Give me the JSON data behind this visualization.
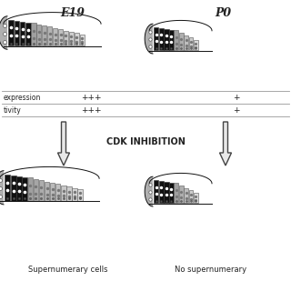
{
  "background_color": "#ffffff",
  "e19_label": "E19",
  "p0_label": "P0",
  "row1_label": "expression",
  "row2_label": "tivity",
  "e19_expression": "+++",
  "e19_activity": "+++",
  "p0_expression": "+",
  "p0_activity": "+",
  "cdk_label": "CDK INHIBITION",
  "bottom_left_label": "Supernumerary cells",
  "bottom_right_label": "No supernumerary",
  "text_color": "#222222",
  "dark_color": "#111111",
  "mid_color": "#888888",
  "light_color": "#cccccc",
  "arrow_fill": "#e0e0e0",
  "arrow_edge": "#444444"
}
